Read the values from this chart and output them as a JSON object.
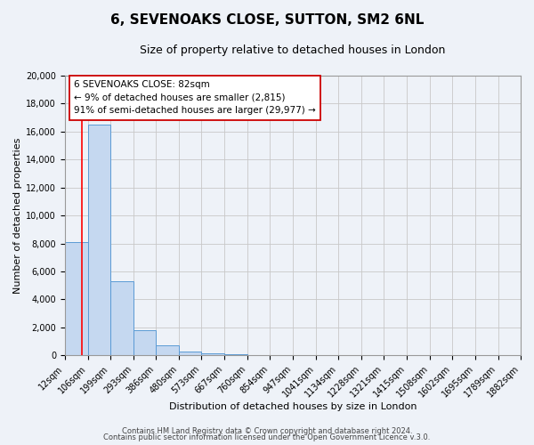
{
  "title": "6, SEVENOAKS CLOSE, SUTTON, SM2 6NL",
  "subtitle": "Size of property relative to detached houses in London",
  "xlabel": "Distribution of detached houses by size in London",
  "ylabel": "Number of detached properties",
  "bin_labels": [
    "12sqm",
    "106sqm",
    "199sqm",
    "293sqm",
    "386sqm",
    "480sqm",
    "573sqm",
    "667sqm",
    "760sqm",
    "854sqm",
    "947sqm",
    "1041sqm",
    "1134sqm",
    "1228sqm",
    "1321sqm",
    "1415sqm",
    "1508sqm",
    "1602sqm",
    "1695sqm",
    "1789sqm",
    "1882sqm"
  ],
  "bin_edges": [
    12,
    106,
    199,
    293,
    386,
    480,
    573,
    667,
    760,
    854,
    947,
    1041,
    1134,
    1228,
    1321,
    1415,
    1508,
    1602,
    1695,
    1789,
    1882
  ],
  "bar_heights": [
    8100,
    16500,
    5300,
    1800,
    700,
    300,
    150,
    100,
    50,
    20,
    10,
    5,
    3,
    2,
    1,
    1,
    1,
    1,
    1,
    0
  ],
  "bar_color": "#c5d8f0",
  "bar_edge_color": "#5b9bd5",
  "red_line_x": 82,
  "ylim": [
    0,
    20000
  ],
  "annotation_line1": "6 SEVENOAKS CLOSE: 82sqm",
  "annotation_line2": "← 9% of detached houses are smaller (2,815)",
  "annotation_line3": "91% of semi-detached houses are larger (29,977) →",
  "footer_line1": "Contains HM Land Registry data © Crown copyright and database right 2024.",
  "footer_line2": "Contains public sector information licensed under the Open Government Licence v.3.0.",
  "background_color": "#eef2f8",
  "grid_color": "#c8c8c8",
  "title_fontsize": 11,
  "subtitle_fontsize": 9,
  "axis_label_fontsize": 8,
  "tick_fontsize": 7,
  "annotation_fontsize": 7.5,
  "footer_fontsize": 6,
  "yticks": [
    0,
    2000,
    4000,
    6000,
    8000,
    10000,
    12000,
    14000,
    16000,
    18000,
    20000
  ]
}
